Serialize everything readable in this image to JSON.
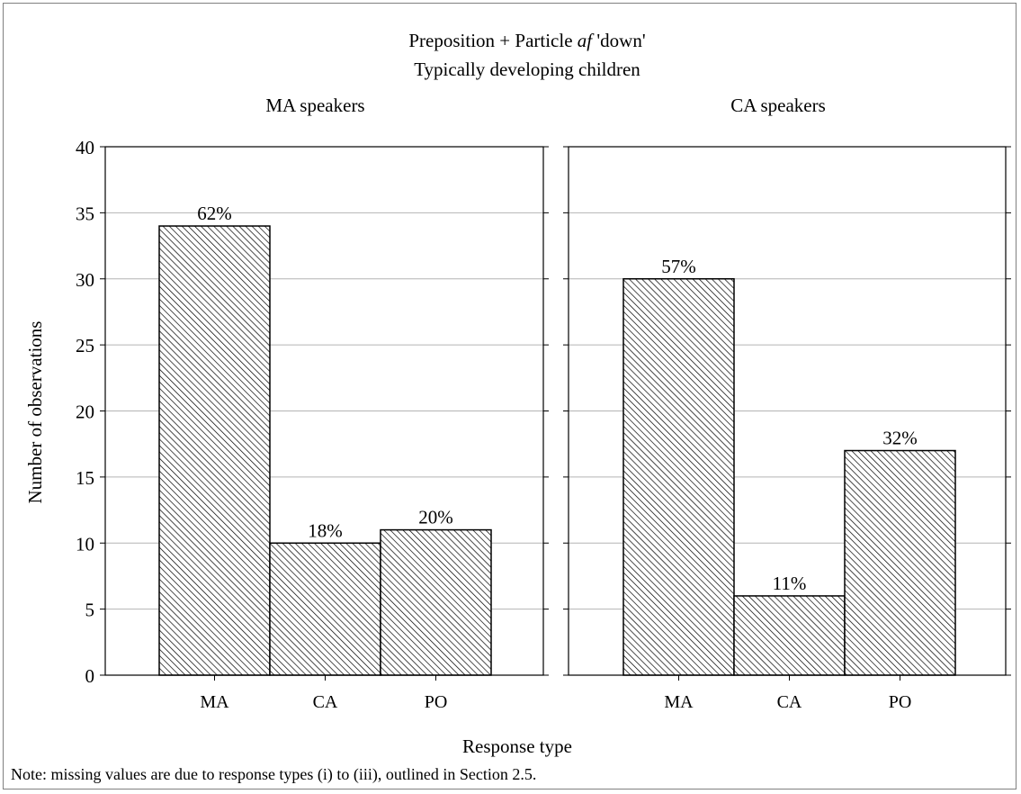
{
  "chart_data": {
    "type": "bar",
    "title_line1_prefix": "Preposition + Particle ",
    "title_line1_italic": "af",
    "title_line1_suffix": " 'down'",
    "title_line2": "Typically developing children",
    "xlabel": "Response type",
    "ylabel": "Number of observations",
    "ylim": [
      0,
      40
    ],
    "yticks": [
      0,
      5,
      10,
      15,
      20,
      25,
      30,
      35,
      40
    ],
    "grid": true,
    "categories": [
      "MA",
      "CA",
      "PO"
    ],
    "panels": [
      {
        "name": "MA speakers",
        "values": [
          34,
          10,
          11
        ],
        "labels": [
          "62%",
          "18%",
          "20%"
        ]
      },
      {
        "name": "CA speakers",
        "values": [
          30,
          6,
          17
        ],
        "labels": [
          "57%",
          "11%",
          "32%"
        ]
      }
    ],
    "note": "Note: missing values are due to response types (i) to (iii), outlined in Section 2.5."
  }
}
